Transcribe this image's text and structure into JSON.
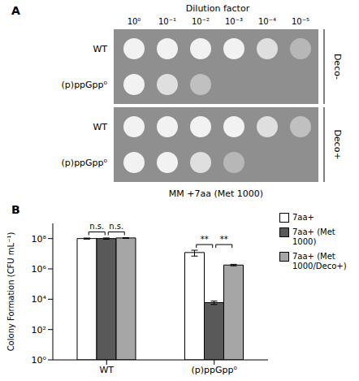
{
  "panel_a": {
    "panel": "A",
    "header": "Dilution factor",
    "dilutions": [
      "10⁰",
      "10⁻¹",
      "10⁻²",
      "10⁻³",
      "10⁻⁴",
      "10⁻⁵"
    ],
    "medium": "MM +7aa (Met 1000)",
    "plates": [
      {
        "label": "Deco-",
        "rows": [
          {
            "strain": "WT",
            "growth": [
              1,
              1,
              1,
              1,
              0.8,
              0.4
            ]
          },
          {
            "strain": "(p)ppGpp⁰",
            "growth": [
              1,
              0.8,
              0.5,
              0,
              0,
              0
            ]
          }
        ]
      },
      {
        "label": "Deco+",
        "rows": [
          {
            "strain": "WT",
            "growth": [
              1,
              1,
              1,
              1,
              0.8,
              0.5
            ]
          },
          {
            "strain": "(p)ppGpp⁰",
            "growth": [
              1,
              1,
              0.8,
              0.4,
              0,
              0
            ]
          }
        ]
      }
    ]
  },
  "chart_data": {
    "type": "bar",
    "panel": "B",
    "categories": [
      "WT",
      "(p)ppGpp⁰"
    ],
    "y_label": "Colony Formation (CFU mL⁻¹)",
    "log": "y",
    "ylim": [
      1,
      1000000000
    ],
    "yticks": [
      {
        "value": 1,
        "label": "10⁰"
      },
      {
        "value": 100,
        "label": "10²"
      },
      {
        "value": 10000,
        "label": "10⁴"
      },
      {
        "value": 1000000,
        "label": "10⁶"
      },
      {
        "value": 100000000,
        "label": "10⁸"
      }
    ],
    "grid": false,
    "legend": "right",
    "series": [
      {
        "name": "7aa+",
        "color": "#ffffff",
        "values": [
          100000000,
          12000000
        ],
        "errors": [
          8000000,
          5000000
        ]
      },
      {
        "name": "7aa+ (Met 1000)",
        "color": "#595959",
        "values": [
          100000000,
          6000
        ],
        "errors": [
          10000000,
          1500
        ]
      },
      {
        "name": "7aa+ (Met 1000/Deco+)",
        "color": "#a6a6a6",
        "values": [
          110000000,
          1800000
        ],
        "errors": [
          6000000,
          200000
        ]
      }
    ],
    "significance": [
      {
        "category": "WT",
        "from": "7aa+",
        "to": "7aa+ (Met 1000)",
        "label": "n.s."
      },
      {
        "category": "WT",
        "from": "7aa+ (Met 1000)",
        "to": "7aa+ (Met 1000/Deco+)",
        "label": "n.s."
      },
      {
        "category": "(p)ppGpp⁰",
        "from": "7aa+",
        "to": "7aa+ (Met 1000)",
        "label": "**"
      },
      {
        "category": "(p)ppGpp⁰",
        "from": "7aa+ (Met 1000)",
        "to": "7aa+ (Met 1000/Deco+)",
        "label": "**"
      }
    ]
  }
}
